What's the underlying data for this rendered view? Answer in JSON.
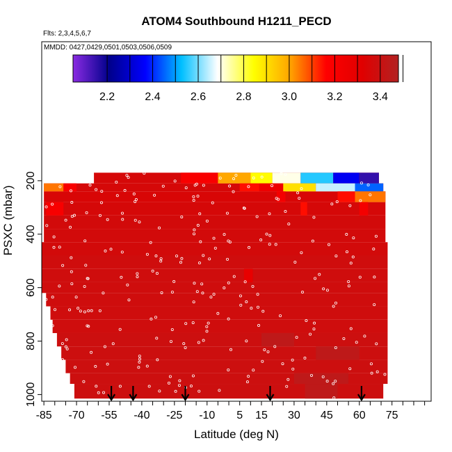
{
  "chart_data": {
    "type": "heatmap",
    "title": "ATOM4 Southbound H1211_PECD",
    "flights_label": "Flts: 2,3,4,5,6,7",
    "dates_label": "MMDD: 0427,0429,0501,0503,0506,0509",
    "xlabel": "Latitude (deg N)",
    "ylabel": "PSXC (mbar)",
    "x_ticks": [
      -85,
      -70,
      -55,
      -40,
      -25,
      -10,
      5,
      15,
      30,
      45,
      60,
      75
    ],
    "x_tick_labels": [
      "-85",
      "-70",
      "-55",
      "-40",
      "-25",
      "-10",
      "5",
      "15",
      "30",
      "45",
      "60",
      "75"
    ],
    "y_ticks": [
      200,
      400,
      600,
      800,
      1000
    ],
    "y_tick_labels": [
      "200",
      "400",
      "600",
      "800",
      "1000"
    ],
    "xlim": [
      -86,
      93
    ],
    "ylim": [
      1025,
      -320
    ],
    "colorbar": {
      "range": [
        2.05,
        3.48
      ],
      "ticks": [
        2.2,
        2.4,
        2.6,
        2.8,
        3.0,
        3.2,
        3.4
      ],
      "tick_labels": [
        "2.2",
        "2.4",
        "2.6",
        "2.8",
        "3.0",
        "3.2",
        "3.4"
      ],
      "colors": [
        "#8a2be2",
        "#00008b",
        "#0000ff",
        "#00bfff",
        "#ffffff",
        "#ffff00",
        "#ffa500",
        "#ff0000",
        "#e00000",
        "#b22222"
      ]
    },
    "background_value": 3.36,
    "pressure_bands": [
      {
        "p_top": 170,
        "p_bottom": 210,
        "lat_min": -62,
        "lat_max": 69,
        "value": 3.36
      },
      {
        "p_top": 210,
        "p_bottom": 240,
        "lat_min": -85,
        "lat_max": 71,
        "value": 3.36
      },
      {
        "p_top": 240,
        "p_bottom": 280,
        "lat_min": -85,
        "lat_max": 72,
        "value": 3.35
      },
      {
        "p_top": 280,
        "p_bottom": 330,
        "lat_min": -85,
        "lat_max": 72,
        "value": 3.36
      },
      {
        "p_top": 330,
        "p_bottom": 380,
        "lat_min": -85,
        "lat_max": 72,
        "value": 3.37
      },
      {
        "p_top": 380,
        "p_bottom": 430,
        "lat_min": -85,
        "lat_max": 72,
        "value": 3.37
      },
      {
        "p_top": 430,
        "p_bottom": 480,
        "lat_min": -86,
        "lat_max": 73,
        "value": 3.37
      },
      {
        "p_top": 480,
        "p_bottom": 530,
        "lat_min": -86,
        "lat_max": 73,
        "value": 3.38
      },
      {
        "p_top": 530,
        "p_bottom": 580,
        "lat_min": -86,
        "lat_max": 73,
        "value": 3.38
      },
      {
        "p_top": 580,
        "p_bottom": 620,
        "lat_min": -86,
        "lat_max": 73,
        "value": 3.38
      },
      {
        "p_top": 620,
        "p_bottom": 670,
        "lat_min": -84,
        "lat_max": 73,
        "value": 3.38
      },
      {
        "p_top": 670,
        "p_bottom": 720,
        "lat_min": -82,
        "lat_max": 73,
        "value": 3.38
      },
      {
        "p_top": 720,
        "p_bottom": 770,
        "lat_min": -81,
        "lat_max": 73,
        "value": 3.38
      },
      {
        "p_top": 770,
        "p_bottom": 820,
        "lat_min": -79,
        "lat_max": 73,
        "value": 3.39
      },
      {
        "p_top": 820,
        "p_bottom": 870,
        "lat_min": -77,
        "lat_max": 73,
        "value": 3.39
      },
      {
        "p_top": 870,
        "p_bottom": 920,
        "lat_min": -75,
        "lat_max": 73,
        "value": 3.39
      },
      {
        "p_top": 920,
        "p_bottom": 960,
        "lat_min": -73,
        "lat_max": 73,
        "value": 3.39
      },
      {
        "p_top": 960,
        "p_bottom": 1015,
        "lat_min": -71,
        "lat_max": 71,
        "value": 3.39
      }
    ],
    "features": [
      {
        "p_top": 170,
        "p_bottom": 210,
        "lat_min": -22,
        "lat_max": -5,
        "value": 3.2
      },
      {
        "p_top": 170,
        "p_bottom": 210,
        "lat_min": -5,
        "lat_max": 10,
        "value": 3.0
      },
      {
        "p_top": 170,
        "p_bottom": 210,
        "lat_min": 10,
        "lat_max": 20,
        "value": 2.85
      },
      {
        "p_top": 170,
        "p_bottom": 210,
        "lat_min": 20,
        "lat_max": 33,
        "value": 2.7
      },
      {
        "p_top": 170,
        "p_bottom": 210,
        "lat_min": 33,
        "lat_max": 48,
        "value": 2.55
      },
      {
        "p_top": 170,
        "p_bottom": 210,
        "lat_min": 48,
        "lat_max": 60,
        "value": 2.35
      },
      {
        "p_top": 170,
        "p_bottom": 210,
        "lat_min": 60,
        "lat_max": 69,
        "value": 2.15
      },
      {
        "p_top": 210,
        "p_bottom": 240,
        "lat_min": -85,
        "lat_max": -76,
        "value": 3.05
      },
      {
        "p_top": 210,
        "p_bottom": 240,
        "lat_min": -76,
        "lat_max": -70,
        "value": 3.2
      },
      {
        "p_top": 210,
        "p_bottom": 240,
        "lat_min": 5,
        "lat_max": 14,
        "value": 3.15
      },
      {
        "p_top": 210,
        "p_bottom": 240,
        "lat_min": 14,
        "lat_max": 25,
        "value": 3.25
      },
      {
        "p_top": 210,
        "p_bottom": 240,
        "lat_min": 25,
        "lat_max": 40,
        "value": 2.9
      },
      {
        "p_top": 210,
        "p_bottom": 240,
        "lat_min": 40,
        "lat_max": 58,
        "value": 2.65
      },
      {
        "p_top": 210,
        "p_bottom": 240,
        "lat_min": 58,
        "lat_max": 71,
        "value": 2.45
      },
      {
        "p_top": 240,
        "p_bottom": 280,
        "lat_min": 50,
        "lat_max": 58,
        "value": 3.15
      },
      {
        "p_top": 240,
        "p_bottom": 280,
        "lat_min": 58,
        "lat_max": 72,
        "value": 3.05
      },
      {
        "p_top": 240,
        "p_bottom": 280,
        "lat_min": 22,
        "lat_max": 26,
        "value": 3.22
      },
      {
        "p_top": 280,
        "p_bottom": 330,
        "lat_min": -84,
        "lat_max": -76,
        "value": 3.2
      },
      {
        "p_top": 280,
        "p_bottom": 330,
        "lat_min": 33,
        "lat_max": 36,
        "value": 3.15
      },
      {
        "p_top": 280,
        "p_bottom": 330,
        "lat_min": 60,
        "lat_max": 64,
        "value": 3.22
      },
      {
        "p_top": 530,
        "p_bottom": 580,
        "lat_min": 7,
        "lat_max": 11,
        "value": 3.28
      },
      {
        "p_top": 770,
        "p_bottom": 820,
        "lat_min": 15,
        "lat_max": 30,
        "value": 3.44
      },
      {
        "p_top": 820,
        "p_bottom": 870,
        "lat_min": 40,
        "lat_max": 60,
        "value": 3.44
      },
      {
        "p_top": 920,
        "p_bottom": 960,
        "lat_min": 30,
        "lat_max": 55,
        "value": 3.44
      },
      {
        "p_top": 960,
        "p_bottom": 1015,
        "lat_min": 35,
        "lat_max": 50,
        "value": 3.44
      }
    ],
    "flight_markers_lat": [
      -54,
      -44,
      -20,
      19,
      61
    ]
  }
}
